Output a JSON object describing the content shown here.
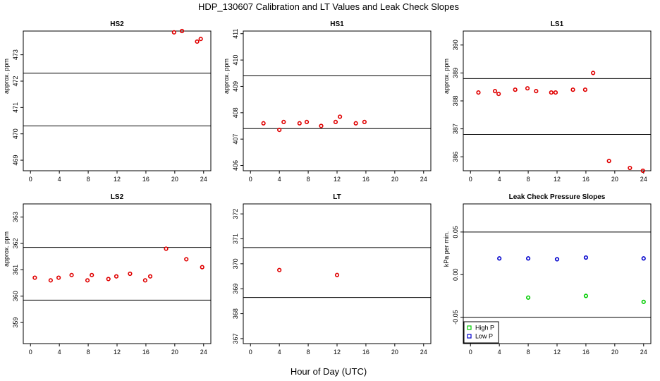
{
  "figure": {
    "title": "HDP_130607  Calibration and LT Values and Leak Check Slopes",
    "xlabel": "Hour of Day (UTC)"
  },
  "colors": {
    "cal": "#e00000",
    "high": "#00cc00",
    "low": "#0000cc",
    "line": "#000000"
  },
  "chart_data": [
    {
      "type": "scatter",
      "title": "HS2",
      "ylabel": "approx. ppm",
      "xlim": [
        -1,
        25
      ],
      "ylim": [
        468.6,
        473.9
      ],
      "xticks": [
        0,
        4,
        8,
        12,
        16,
        20,
        24
      ],
      "yticks": [
        469,
        470,
        471,
        472,
        473
      ],
      "hlines": [
        470.3,
        472.3
      ],
      "series": [
        {
          "color": "#e00000",
          "x": [
            19.9,
            21.0,
            23.1,
            23.6
          ],
          "y": [
            473.85,
            473.9,
            473.5,
            473.6
          ]
        }
      ]
    },
    {
      "type": "scatter",
      "title": "HS1",
      "ylabel": "approx. ppm",
      "xlim": [
        -1,
        25
      ],
      "ylim": [
        405.8,
        411.1
      ],
      "xticks": [
        0,
        4,
        8,
        12,
        16,
        20,
        24
      ],
      "yticks": [
        406,
        407,
        408,
        409,
        410,
        411
      ],
      "hlines": [
        407.4,
        409.4
      ],
      "series": [
        {
          "color": "#e00000",
          "x": [
            1.8,
            4.0,
            4.6,
            6.8,
            7.8,
            9.8,
            11.8,
            12.4,
            14.6,
            15.8
          ],
          "y": [
            407.6,
            407.35,
            407.65,
            407.6,
            407.65,
            407.5,
            407.65,
            407.85,
            407.6,
            407.65
          ]
        }
      ]
    },
    {
      "type": "scatter",
      "title": "LS1",
      "ylabel": "approx. ppm",
      "xlim": [
        -1,
        25
      ],
      "ylim": [
        385.5,
        390.5
      ],
      "xticks": [
        0,
        4,
        8,
        12,
        16,
        20,
        24
      ],
      "yticks": [
        386,
        387,
        388,
        389,
        390
      ],
      "hlines": [
        386.8,
        388.8
      ],
      "series": [
        {
          "color": "#e00000",
          "x": [
            1.1,
            3.4,
            3.9,
            6.2,
            7.9,
            9.1,
            11.2,
            11.8,
            14.2,
            15.9,
            17.0,
            19.2,
            22.1,
            23.9
          ],
          "y": [
            388.3,
            388.35,
            388.25,
            388.4,
            388.45,
            388.35,
            388.3,
            388.3,
            388.4,
            388.4,
            389.0,
            385.85,
            385.6,
            385.5
          ]
        }
      ]
    },
    {
      "type": "scatter",
      "title": "LS2",
      "ylabel": "approx. ppm",
      "xlim": [
        -1,
        25
      ],
      "ylim": [
        358.2,
        363.5
      ],
      "xticks": [
        0,
        4,
        8,
        12,
        16,
        20,
        24
      ],
      "yticks": [
        359,
        360,
        361,
        362,
        363
      ],
      "hlines": [
        359.85,
        361.85
      ],
      "series": [
        {
          "color": "#e00000",
          "x": [
            0.6,
            2.8,
            3.9,
            5.7,
            7.9,
            8.5,
            10.8,
            11.9,
            13.8,
            15.9,
            16.6,
            18.8,
            21.6,
            23.8
          ],
          "y": [
            360.7,
            360.6,
            360.7,
            360.8,
            360.6,
            360.8,
            360.65,
            360.75,
            360.85,
            360.6,
            360.75,
            361.8,
            361.4,
            361.1
          ]
        }
      ]
    },
    {
      "type": "scatter",
      "title": "LT",
      "ylabel": "",
      "xlim": [
        -1,
        25
      ],
      "ylim": [
        366.8,
        372.4
      ],
      "xticks": [
        0,
        4,
        8,
        12,
        16,
        20,
        24
      ],
      "yticks": [
        367,
        368,
        369,
        370,
        371,
        372
      ],
      "hlines": [
        368.65,
        370.65
      ],
      "series": [
        {
          "color": "#e00000",
          "x": [
            4.0,
            12.0
          ],
          "y": [
            369.75,
            369.55
          ]
        }
      ]
    },
    {
      "type": "scatter",
      "title": "Leak Check Pressure Slopes",
      "ylabel": "kPa per min.",
      "xlim": [
        -1,
        25
      ],
      "ylim": [
        -0.081,
        0.083
      ],
      "xticks": [
        0,
        4,
        8,
        12,
        16,
        20,
        24
      ],
      "yticks": [
        -0.05,
        0.0,
        0.05
      ],
      "ytick_labels": [
        "-0.05",
        "0.00",
        "0.05"
      ],
      "hlines": [
        -0.05,
        0.05
      ],
      "legend": "bottom-left",
      "series": [
        {
          "name": "High P",
          "color": "#00cc00",
          "x": [
            8,
            16,
            24
          ],
          "y": [
            -0.027,
            -0.025,
            -0.032
          ]
        },
        {
          "name": "Low P",
          "color": "#0000cc",
          "x": [
            4,
            8,
            12,
            16,
            24
          ],
          "y": [
            0.019,
            0.019,
            0.018,
            0.02,
            0.019
          ]
        }
      ]
    }
  ]
}
